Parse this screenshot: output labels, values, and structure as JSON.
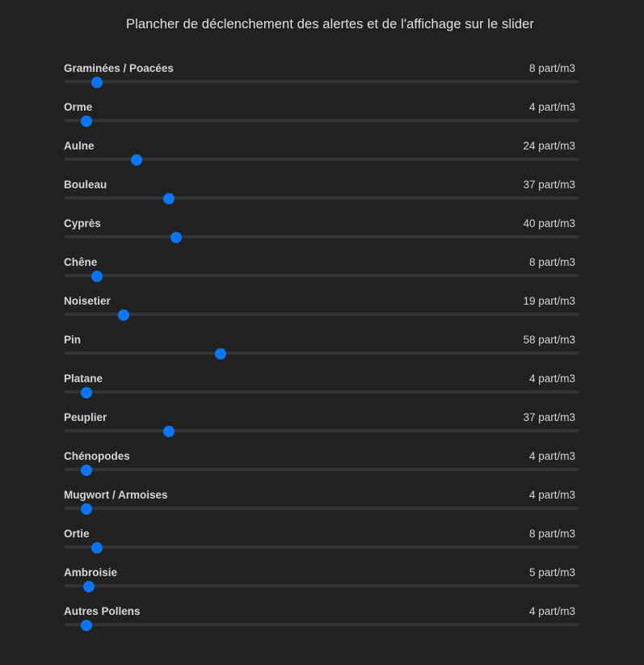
{
  "title": "Plancher de déclenchement des alertes et de l'affichage sur le slider",
  "slider": {
    "min": 0,
    "max": 200,
    "accent_color": "#0a75f5",
    "track_color": "#333333"
  },
  "rows": [
    {
      "label": "Graminées / Poacées",
      "value": "8 part/m3",
      "level": 8
    },
    {
      "label": "Orme",
      "value": "4 part/m3",
      "level": 4
    },
    {
      "label": "Aulne",
      "value": "24 part/m3",
      "level": 24
    },
    {
      "label": "Bouleau",
      "value": "37 part/m3",
      "level": 37
    },
    {
      "label": "Cyprès",
      "value": "40 part/m3",
      "level": 40
    },
    {
      "label": "Chêne",
      "value": "8 part/m3",
      "level": 8
    },
    {
      "label": "Noisetier",
      "value": "19 part/m3",
      "level": 19
    },
    {
      "label": "Pin",
      "value": "58 part/m3",
      "level": 58
    },
    {
      "label": "Platane",
      "value": "4 part/m3",
      "level": 4
    },
    {
      "label": "Peuplier",
      "value": "37 part/m3",
      "level": 37
    },
    {
      "label": "Chénopodes",
      "value": "4 part/m3",
      "level": 4
    },
    {
      "label": "Mugwort / Armoises",
      "value": "4 part/m3",
      "level": 4
    },
    {
      "label": "Ortie",
      "value": "8 part/m3",
      "level": 8
    },
    {
      "label": "Ambroisie",
      "value": "5 part/m3",
      "level": 5
    },
    {
      "label": "Autres Pollens",
      "value": "4 part/m3",
      "level": 4
    }
  ]
}
